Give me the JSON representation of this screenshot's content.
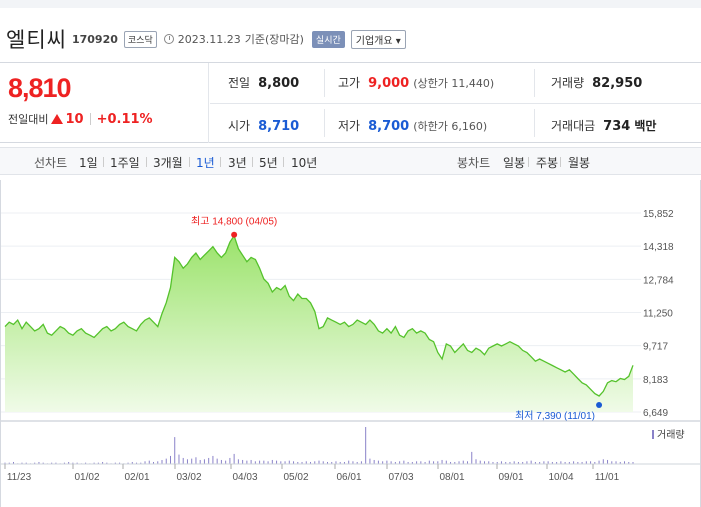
{
  "header": {
    "name": "엘티씨",
    "code": "170920",
    "market": "코스닥",
    "date": "2023.11.23",
    "basis": "기준(장마감)",
    "realtime": "실시간",
    "corp_info": "기업개요 ▾"
  },
  "price": {
    "current": "8,810",
    "change_label": "전일대비",
    "change_value": "10",
    "change_rate": "+0.11%"
  },
  "stats": {
    "prev_label": "전일",
    "prev": "8,800",
    "high_label": "고가",
    "high": "9,000",
    "high_sub": "(상한가 11,440)",
    "volume_label": "거래량",
    "volume": "82,950",
    "open_label": "시가",
    "open": "8,710",
    "low_label": "저가",
    "low": "8,700",
    "low_sub": "(하한가 6,160)",
    "amount_label": "거래대금",
    "amount": "734",
    "amount_unit": "백만"
  },
  "periods": {
    "line_label": "선차트",
    "items": [
      "1일",
      "1주일",
      "3개월",
      "1년",
      "3년",
      "5년",
      "10년"
    ],
    "active": "1년",
    "candle_label": "봉차트",
    "candles": [
      "일봉",
      "주봉",
      "월봉"
    ]
  },
  "chart_data": {
    "type": "area",
    "title": "",
    "y_ticks": [
      "15,852",
      "14,318",
      "12,784",
      "11,250",
      "9,717",
      "8,183",
      "6,649"
    ],
    "ylim": [
      6649,
      15852
    ],
    "x_ticks": [
      "11/23",
      "01/02",
      "02/01",
      "03/02",
      "04/03",
      "05/02",
      "06/01",
      "07/03",
      "08/01",
      "09/01",
      "10/04",
      "11/01"
    ],
    "high_annotation": "최고 14,800 (04/05)",
    "low_annotation": "최저 7,390 (11/01)",
    "volume_legend": "거래량",
    "series": [
      {
        "values": [
          10600,
          10800,
          10700,
          10900,
          10500,
          10800,
          10600,
          10400,
          10500,
          10700,
          10300,
          10200,
          10400,
          10600,
          10500,
          10300,
          10200,
          10400,
          10500,
          10300,
          10200,
          10100,
          10300,
          10500,
          10600,
          10400,
          10500,
          10700,
          10800,
          10600,
          10500,
          10400,
          10700,
          10900,
          11000,
          10800,
          10600,
          11200,
          11700,
          12400,
          13800,
          13600,
          13300,
          13500,
          13800,
          14000,
          13700,
          13900,
          14100,
          14300,
          14000,
          13800,
          14000,
          14500,
          14800,
          14200,
          13900,
          13600,
          13800,
          13700,
          13300,
          12800,
          12600,
          12200,
          12400,
          12300,
          12500,
          12000,
          11800,
          12100,
          11900,
          11900,
          11700,
          11300,
          10500,
          10600,
          11000,
          10900,
          10800,
          10700,
          10800,
          10600,
          10700,
          10900,
          10800,
          10700,
          10900,
          10700,
          10400,
          10300,
          10500,
          10300,
          10600,
          10200,
          10100,
          10400,
          10500,
          10300,
          10400,
          10300,
          10000,
          9900,
          9400,
          9100,
          9800,
          9700,
          9400,
          9600,
          9800,
          9500,
          9400,
          9600,
          9500,
          9300,
          9600,
          9700,
          9800,
          9700,
          9800,
          9900,
          9800,
          9700,
          9500,
          9400,
          9200,
          9000,
          9100,
          9000,
          8900,
          8800,
          8700,
          8600,
          8500,
          8600,
          8400,
          8200,
          8000,
          7900,
          7700,
          7500,
          7390,
          7600,
          8000,
          8100,
          8050,
          8200,
          8150,
          8300,
          8810
        ]
      }
    ],
    "volume": [
      2,
      2,
      3,
      1,
      2,
      2,
      1,
      2,
      3,
      2,
      1,
      2,
      2,
      1,
      2,
      3,
      2,
      2,
      1,
      2,
      1,
      2,
      2,
      3,
      2,
      1,
      2,
      2,
      1,
      2,
      3,
      2,
      2,
      4,
      5,
      3,
      4,
      6,
      8,
      12,
      40,
      14,
      9,
      7,
      8,
      10,
      6,
      7,
      9,
      12,
      8,
      6,
      5,
      9,
      15,
      7,
      6,
      5,
      6,
      4,
      5,
      5,
      4,
      6,
      5,
      4,
      4,
      5,
      4,
      3,
      3,
      4,
      3,
      4,
      5,
      4,
      3,
      3,
      4,
      3,
      3,
      5,
      4,
      3,
      4,
      55,
      8,
      6,
      5,
      4,
      5,
      4,
      3,
      4,
      5,
      3,
      3,
      4,
      4,
      3,
      5,
      4,
      4,
      6,
      5,
      3,
      3,
      4,
      5,
      4,
      18,
      7,
      5,
      4,
      4,
      3,
      3,
      4,
      3,
      3,
      4,
      3,
      3,
      4,
      5,
      3,
      3,
      4,
      4,
      3,
      3,
      4,
      3,
      3,
      4,
      3,
      3,
      4,
      4,
      3,
      5,
      7,
      6,
      4,
      4,
      3,
      4,
      3,
      3
    ]
  }
}
